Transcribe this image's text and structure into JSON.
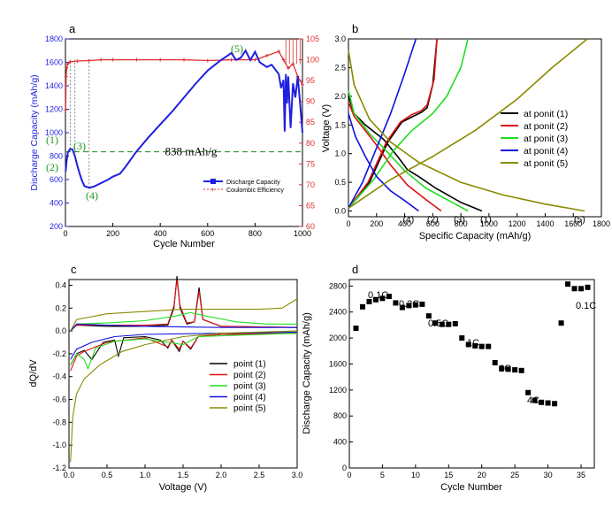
{
  "chart_data": [
    {
      "panel": "a",
      "type": "line",
      "xlabel": "Cycle Number",
      "ylabel": "Discharge Capacity (mAh/g)",
      "ylabel_right": "Coulombic Efficiency (%)",
      "xlim": [
        0,
        1000
      ],
      "ylim": [
        200,
        1800
      ],
      "ylim_right": [
        60,
        105
      ],
      "xticks": [
        "0",
        "200",
        "400",
        "600",
        "800",
        "1000"
      ],
      "yticks": [
        "200",
        "400",
        "600",
        "800",
        "1000",
        "1200",
        "1400",
        "1600",
        "1800"
      ],
      "yticks_right": [
        "60",
        "65",
        "70",
        "75",
        "80",
        "85",
        "90",
        "95",
        "100",
        "105"
      ],
      "reference_line": {
        "value": 838,
        "label": "838 mAh/g"
      },
      "point_labels": [
        "(1)",
        "(2)",
        "(3)",
        "(4)",
        "(5)"
      ],
      "legend": [
        "Discharge Capacity",
        "Coulombic Efficiency"
      ],
      "legend_position": "lower-right",
      "series": [
        {
          "name": "Discharge Capacity",
          "color": "#1f1fe0",
          "x": [
            1,
            5,
            10,
            20,
            30,
            40,
            50,
            60,
            70,
            80,
            100,
            120,
            150,
            180,
            200,
            230,
            250,
            300,
            350,
            400,
            450,
            500,
            550,
            600,
            650,
            700,
            720,
            740,
            760,
            780,
            800,
            820,
            850,
            870,
            900,
            910,
            920,
            925,
            930,
            935,
            940,
            950,
            960,
            970,
            980,
            990,
            1000
          ],
          "y": [
            670,
            760,
            830,
            862,
            855,
            800,
            720,
            650,
            590,
            545,
            530,
            540,
            570,
            600,
            625,
            650,
            700,
            840,
            960,
            1070,
            1180,
            1300,
            1420,
            1530,
            1610,
            1680,
            1620,
            1640,
            1700,
            1620,
            1690,
            1600,
            1560,
            1580,
            1500,
            1380,
            1450,
            1010,
            1500,
            1250,
            1480,
            1040,
            1420,
            1300,
            1480,
            1250,
            1000
          ]
        },
        {
          "name": "Coulombic Efficiency",
          "color": "#e03030",
          "axis": "right",
          "x": [
            1,
            3,
            5,
            10,
            20,
            50,
            100,
            150,
            200,
            300,
            400,
            500,
            600,
            700,
            800,
            850,
            900,
            920,
            940,
            960,
            980,
            1000
          ],
          "y": [
            88,
            96,
            98,
            99,
            99.5,
            99.7,
            99.8,
            100,
            100,
            100,
            100,
            100,
            99.8,
            100,
            100,
            101,
            102,
            100,
            98,
            99,
            96,
            94
          ]
        }
      ]
    },
    {
      "panel": "b",
      "type": "line",
      "xlabel": "Specific Capacity (mAh/g)",
      "ylabel": "Voltage (V)",
      "xlim": [
        0,
        1800
      ],
      "ylim": [
        -0.1,
        3.0
      ],
      "xticks": [
        "0",
        "200",
        "400",
        "600",
        "800",
        "1000",
        "1200",
        "1400",
        "1600",
        "1800"
      ],
      "yticks": [
        "0.0",
        "0.5",
        "1.0",
        "1.5",
        "2.0",
        "2.5",
        "3.0"
      ],
      "legend_position": "right",
      "end_labels": [
        "(4)",
        "(2)",
        "(3)",
        "(1)",
        "(5)"
      ],
      "series": [
        {
          "name": "at ponit (1)",
          "color": "#000000",
          "end_capacity": 950
        },
        {
          "name": "at ponit (2)",
          "color": "#e01010",
          "end_capacity": 660
        },
        {
          "name": "at ponit (3)",
          "color": "#22dd22",
          "end_capacity": 850
        },
        {
          "name": "at ponit (4)",
          "color": "#1010e0",
          "end_capacity": 500
        },
        {
          "name": "at ponit (5)",
          "color": "#8a8a00",
          "end_capacity": 1680
        }
      ]
    },
    {
      "panel": "c",
      "type": "line",
      "xlabel": "Voltage (V)",
      "ylabel": "dQ/dV",
      "xlim": [
        0,
        3.0
      ],
      "ylim": [
        -1.2,
        0.45
      ],
      "xticks": [
        "0.0",
        "0.5",
        "1.0",
        "1.5",
        "2.0",
        "2.5",
        "3.0"
      ],
      "yticks": [
        "0.4",
        "0.2",
        "0.0",
        "-0.2",
        "-0.4",
        "-0.6",
        "-0.8",
        "-1.0",
        "-1.2"
      ],
      "legend_position": "lower-right",
      "series": [
        {
          "name": "point (1)",
          "color": "#000000"
        },
        {
          "name": "point (2)",
          "color": "#e01010"
        },
        {
          "name": "point (3)",
          "color": "#22dd22"
        },
        {
          "name": "point (4)",
          "color": "#1010e0"
        },
        {
          "name": "point (5)",
          "color": "#8a8a00"
        }
      ]
    },
    {
      "panel": "d",
      "type": "scatter",
      "xlabel": "Cycle Number",
      "ylabel": "Discharge Capacity (mAh/g)",
      "xlim": [
        0,
        37
      ],
      "ylim": [
        0,
        2900
      ],
      "xticks": [
        "0",
        "5",
        "10",
        "15",
        "20",
        "25",
        "30",
        "35"
      ],
      "yticks": [
        "0",
        "400",
        "800",
        "1200",
        "1600",
        "2000",
        "2400",
        "2800"
      ],
      "rate_labels": [
        "0.1C",
        "0.2C",
        "0.5C",
        "1C",
        "2C",
        "4C",
        "0.1C"
      ],
      "series": [
        {
          "name": "",
          "color": "#000000",
          "x": [
            1,
            2,
            3,
            4,
            5,
            6,
            7,
            8,
            9,
            10,
            11,
            12,
            13,
            14,
            15,
            16,
            17,
            18,
            19,
            20,
            21,
            22,
            23,
            24,
            25,
            26,
            27,
            28,
            29,
            30,
            31,
            32,
            33,
            34,
            35,
            36
          ],
          "y": [
            2150,
            2480,
            2560,
            2590,
            2610,
            2640,
            2540,
            2470,
            2500,
            2510,
            2520,
            2340,
            2230,
            2210,
            2210,
            2220,
            2000,
            1900,
            1880,
            1870,
            1870,
            1620,
            1530,
            1520,
            1510,
            1500,
            1160,
            1040,
            1010,
            1000,
            990,
            2230,
            2830,
            2760,
            2760,
            2780
          ]
        }
      ]
    }
  ],
  "panels": {
    "a": "a",
    "b": "b",
    "c": "c",
    "d": "d"
  }
}
